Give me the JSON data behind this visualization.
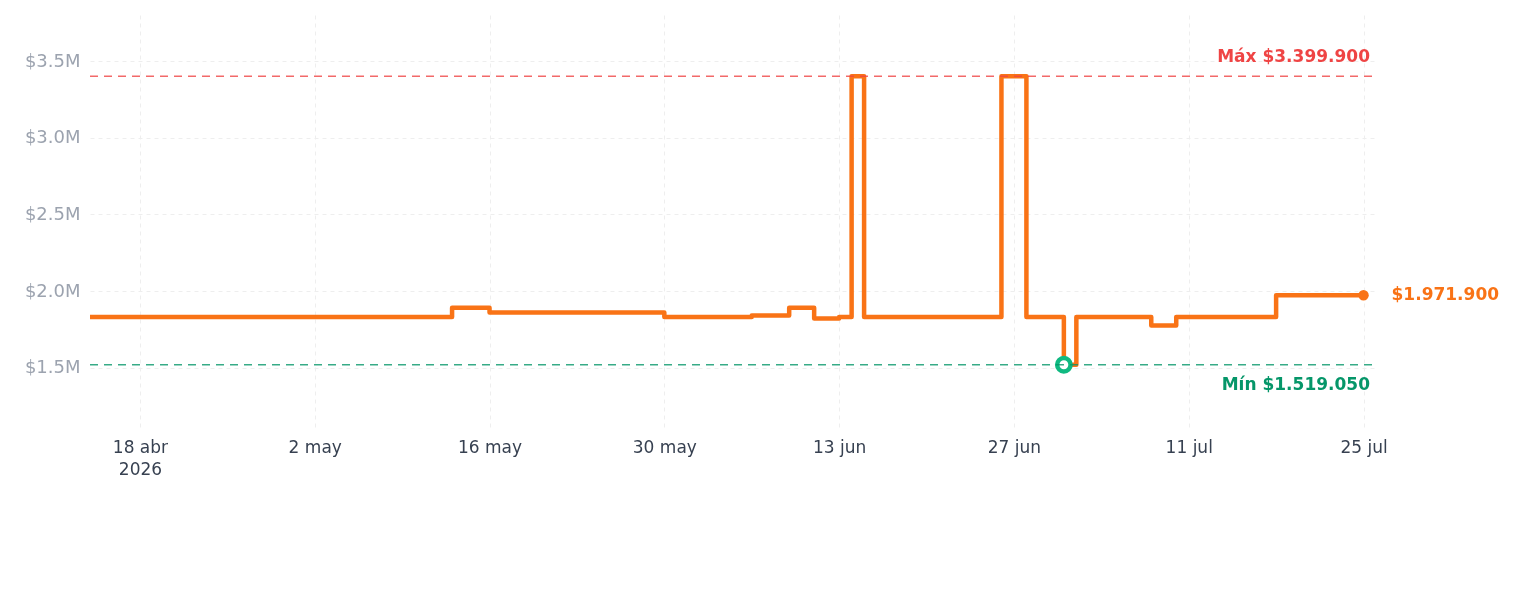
{
  "chart_data": {
    "type": "step",
    "x": [
      "2026-04-14",
      "2026-05-13",
      "2026-05-16",
      "2026-05-30",
      "2026-06-06",
      "2026-06-09",
      "2026-06-11",
      "2026-06-13",
      "2026-06-14",
      "2026-06-15",
      "2026-06-26",
      "2026-06-28",
      "2026-07-01",
      "2026-07-02",
      "2026-07-08",
      "2026-07-10",
      "2026-07-18",
      "2026-07-25"
    ],
    "series": [
      {
        "color": "#f97316",
        "values": [
          1830000,
          1890000,
          1860000,
          1830000,
          1840000,
          1890000,
          1820000,
          1830000,
          3399900,
          1830000,
          3399900,
          1830000,
          1519050,
          1830000,
          1775000,
          1830000,
          1971900,
          1971900
        ]
      },
      {
        "type": "scatter",
        "color": "#10b981",
        "marker": "circle",
        "x": [
          "2026-07-01"
        ],
        "values": [
          1519050
        ]
      }
    ],
    "xlim": [
      "2026-04-14",
      "2026-07-26"
    ],
    "xticks": [
      {
        "value": "2026-04-18",
        "label": "18 abr\n2026"
      },
      {
        "value": "2026-05-02",
        "label": "2 may"
      },
      {
        "value": "2026-05-16",
        "label": "16 may"
      },
      {
        "value": "2026-05-30",
        "label": "30 may"
      },
      {
        "value": "2026-06-13",
        "label": "13 jun"
      },
      {
        "value": "2026-06-27",
        "label": "27 jun"
      },
      {
        "value": "2026-07-11",
        "label": "11 jul"
      },
      {
        "value": "2026-07-25",
        "label": "25 jul"
      }
    ],
    "ylim": [
      1100000,
      3800000
    ],
    "yticks": [
      {
        "value": 1500000,
        "label": "$1.5M"
      },
      {
        "value": 2000000,
        "label": "$2.0M"
      },
      {
        "value": 2500000,
        "label": "$2.5M"
      },
      {
        "value": 3000000,
        "label": "$3.0M"
      },
      {
        "value": 3500000,
        "label": "$3.5M"
      }
    ],
    "ref_lines": [
      {
        "axis": "y",
        "value": 3399900,
        "label": "Máx $3.399.900",
        "color": "#ef4444",
        "line_style": "dashed"
      },
      {
        "axis": "y",
        "value": 1519050,
        "label": "Mín $1.519.050",
        "color": "#059669",
        "line_style": "dashed"
      }
    ],
    "annotations": [
      {
        "text": "$1.971.900",
        "x": "2026-07-25",
        "y": 1971900
      }
    ],
    "grid": true,
    "line_style": "solid"
  }
}
